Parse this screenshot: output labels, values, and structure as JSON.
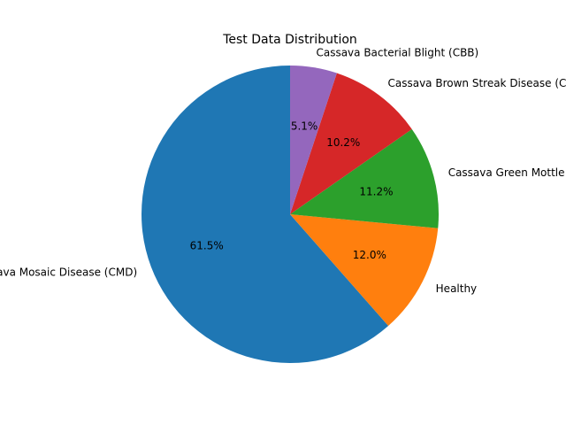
{
  "chart_data": {
    "type": "pie",
    "title": "Test Data Distribution",
    "labels": [
      "Cassava Mosaic Disease (CMD)",
      "Healthy",
      "Cassava Green Mottle (CGM)",
      "Cassava Brown Streak Disease (CBSD)",
      "Cassava Bacterial Blight (CBB)"
    ],
    "values": [
      61.5,
      12.0,
      11.2,
      10.2,
      5.1
    ],
    "pct_labels": [
      "61.5%",
      "12.0%",
      "11.2%",
      "10.2%",
      "5.1%"
    ],
    "colors": [
      "#1f77b4",
      "#ff7f0e",
      "#2ca02c",
      "#d62728",
      "#9467bd"
    ],
    "start_angle_deg": 90,
    "direction": "counterclockwise"
  }
}
